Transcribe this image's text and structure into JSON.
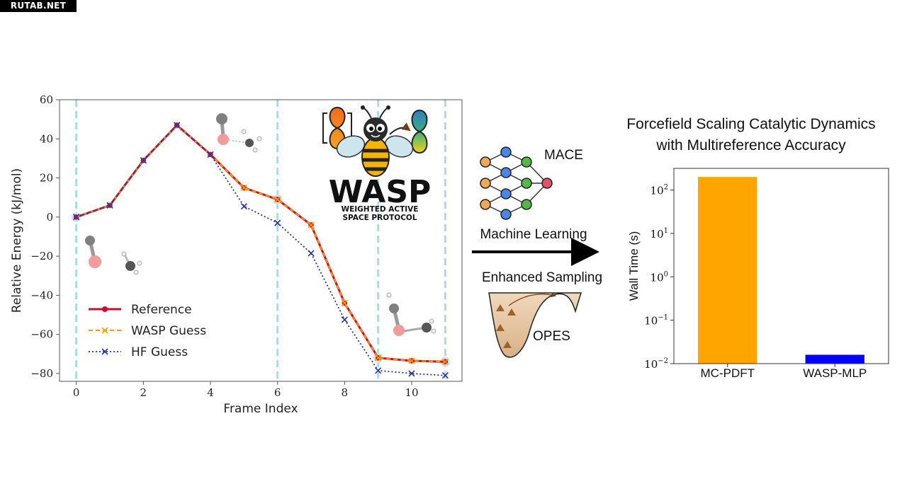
{
  "watermark": "RUTAB.NET",
  "colors": {
    "reference": "#c8102e",
    "wasp": "#ff9900",
    "hf": "#2233aa",
    "guide": "#a8dde8",
    "bar_mcpdft": "#ffa500",
    "bar_waspmlp": "#0000ff"
  },
  "logo": {
    "name": "WASP",
    "subtitle_line1": "WEIGHTED ACTIVE",
    "subtitle_line2": "SPACE PROTOCOL"
  },
  "workflow": {
    "mace_label": "MACE",
    "ml_label": "Machine Learning",
    "sampling_label": "Enhanced Sampling",
    "opes_label": "OPES"
  },
  "right_title": {
    "line1": "Forcefield Scaling Catalytic Dynamics",
    "line2": "with Multireference Accuracy"
  },
  "chart_data": [
    {
      "type": "line",
      "xlabel": "Frame Index",
      "ylabel": "Relative Energy (kJ/mol)",
      "xlim": [
        -0.5,
        11.5
      ],
      "ylim": [
        -84,
        60
      ],
      "x_ticks": [
        "0",
        "2",
        "4",
        "6",
        "8",
        "10"
      ],
      "y_ticks": [
        "60",
        "40",
        "20",
        "0",
        "−20",
        "−40",
        "−60",
        "−80"
      ],
      "vertical_guides_at": [
        0,
        6,
        9,
        11
      ],
      "x": [
        0,
        1,
        2,
        3,
        4,
        5,
        6,
        7,
        8,
        9,
        10,
        11
      ],
      "series": [
        {
          "name": "Reference",
          "style": "solid-circle",
          "values": [
            0,
            6,
            29,
            47,
            32,
            15,
            9,
            -4,
            -44,
            -72,
            -73.5,
            -74
          ]
        },
        {
          "name": "WASP Guess",
          "style": "dashed-x",
          "values": [
            0,
            6,
            29,
            47,
            32,
            15,
            9,
            -4,
            -44,
            -72,
            -73.5,
            -74
          ]
        },
        {
          "name": "HF Guess",
          "style": "dotted-x",
          "values": [
            0,
            6,
            29,
            47,
            32,
            5.5,
            -3,
            -18.5,
            -52.5,
            -78.5,
            -80,
            -81
          ]
        }
      ],
      "legend_position": "lower-left"
    },
    {
      "type": "bar",
      "ylabel": "Wall Time (s)",
      "yscale": "log",
      "ylim": [
        0.01,
        316
      ],
      "y_ticks": [
        "10^2",
        "10^1",
        "10^0",
        "10^−1",
        "10^−2"
      ],
      "categories": [
        "MC-PDFT",
        "WASP-MLP"
      ],
      "values": [
        200,
        0.016
      ]
    }
  ]
}
